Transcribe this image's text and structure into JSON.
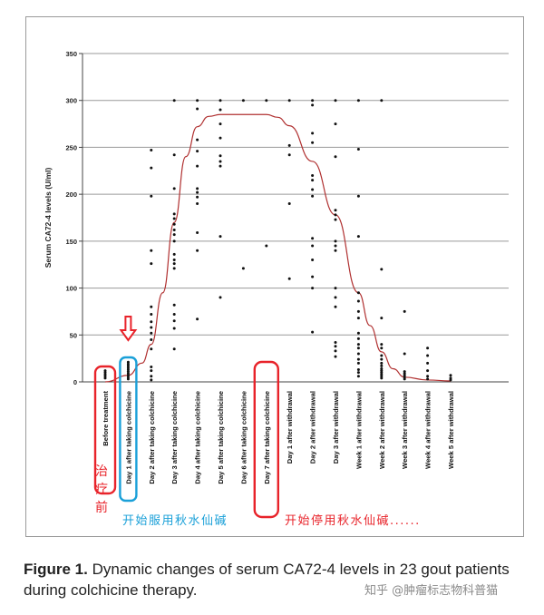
{
  "chart_data": {
    "type": "scatter",
    "title": "",
    "xlabel": "",
    "ylabel": "Serum CA72-4 levels (U/ml)",
    "ylim": [
      0,
      350
    ],
    "yticks": [
      0,
      50,
      100,
      150,
      200,
      250,
      300,
      350
    ],
    "grid": true,
    "categories": [
      "Before treatment",
      "Day 1 after taking colchicine",
      "Day 2 after taking colchicine",
      "Day 3 after taking colchicine",
      "Day 4 after taking colchicine",
      "Day 5 after taking colchicine",
      "Day 6 after taking colchicine",
      "Day 7 after taking colchicine",
      "Day 1 after withdrawal",
      "Day 2 after withdrawal",
      "Day 3 after withdrawal",
      "Week 1 after withdrawal",
      "Week 2 after withdrawal",
      "Week 3 after withdrawal",
      "Week 4 after withdrawal",
      "Week 5 after withdrawal"
    ],
    "points": [
      [
        4,
        6,
        8,
        10,
        12
      ],
      [
        3,
        5,
        7,
        9,
        11,
        13,
        15,
        17,
        19,
        21
      ],
      [
        2,
        6,
        12,
        16,
        35,
        45,
        52,
        58,
        64,
        72,
        80,
        126,
        140,
        198,
        228,
        247
      ],
      [
        35,
        57,
        65,
        72,
        82,
        121,
        126,
        130,
        136,
        150,
        157,
        162,
        168,
        174,
        179,
        206,
        242,
        300
      ],
      [
        67,
        140,
        159,
        190,
        197,
        202,
        206,
        230,
        246,
        258,
        291,
        300
      ],
      [
        90,
        155,
        230,
        235,
        241,
        260,
        275,
        290,
        300
      ],
      [
        121,
        300
      ],
      [
        145,
        300
      ],
      [
        110,
        190,
        242,
        252,
        300
      ],
      [
        53,
        100,
        112,
        130,
        145,
        153,
        198,
        205,
        215,
        220,
        255,
        265,
        295,
        300
      ],
      [
        27,
        33,
        38,
        42,
        80,
        90,
        100,
        140,
        145,
        150,
        173,
        178,
        183,
        240,
        275,
        300
      ],
      [
        6,
        10,
        13,
        20,
        24,
        30,
        36,
        40,
        46,
        52,
        68,
        75,
        86,
        95,
        155,
        198,
        248,
        300
      ],
      [
        4,
        6,
        8,
        10,
        12,
        14,
        17,
        20,
        24,
        28,
        36,
        40,
        68,
        120,
        300
      ],
      [
        3,
        5,
        7,
        9,
        11,
        30,
        75
      ],
      [
        3,
        6,
        12,
        20,
        28,
        36
      ],
      [
        2,
        4,
        7
      ]
    ],
    "trend": {
      "name": "trend curve",
      "color": "#b03030",
      "points": [
        [
          0,
          0
        ],
        [
          1,
          7
        ],
        [
          1.6,
          20
        ],
        [
          2,
          40
        ],
        [
          2.5,
          95
        ],
        [
          3,
          170
        ],
        [
          3.5,
          240
        ],
        [
          4,
          272
        ],
        [
          4.5,
          283
        ],
        [
          5,
          285
        ],
        [
          6,
          285
        ],
        [
          7,
          285
        ],
        [
          7.5,
          282
        ],
        [
          8,
          273
        ],
        [
          9,
          235
        ],
        [
          10,
          178
        ],
        [
          11,
          95
        ],
        [
          11.5,
          60
        ],
        [
          12,
          32
        ],
        [
          12.5,
          14
        ],
        [
          13,
          5
        ],
        [
          14,
          2
        ],
        [
          15,
          1
        ]
      ]
    }
  },
  "annotations": {
    "before_label": "治疗前",
    "start_label": "开始服用秋水仙碱",
    "stop_label": "开始停用秋水仙碱......"
  },
  "colors": {
    "red": "#e8232a",
    "blue": "#1aa0d8",
    "curve": "#b03030"
  },
  "caption": {
    "label": "Figure 1.",
    "text": "Dynamic changes of serum CA72-4 levels in 23 gout patients during colchicine therapy."
  },
  "watermark": "知乎 @肿瘤标志物科普猫"
}
